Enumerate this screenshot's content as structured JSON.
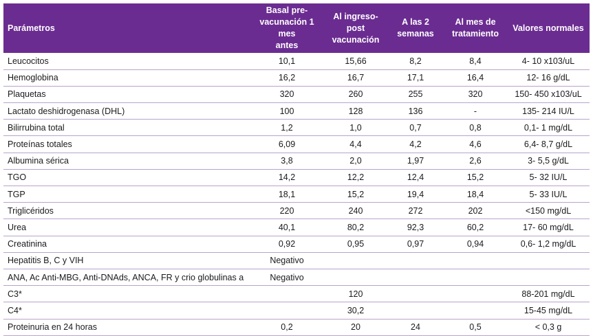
{
  "header": {
    "col0": "Parámetros",
    "col1": "Basal pre-vacunación 1 mes antes",
    "col2": "Al ingreso-post vacunación",
    "col3": "A las 2 semanas",
    "col4": "Al mes de tratamiento",
    "col5": "Valores normales"
  },
  "header_lines": {
    "col1": [
      "Basal pre-",
      "vacunación 1 mes",
      "antes"
    ],
    "col2": [
      "Al ingreso-",
      "post",
      "vacunación"
    ],
    "col3": [
      "A las 2",
      "semanas"
    ],
    "col4": [
      "Al mes de",
      "tratamiento"
    ]
  },
  "rows": [
    [
      "Leucocitos",
      "10,1",
      "15,66",
      "8,2",
      "8,4",
      "4- 10 x103/uL"
    ],
    [
      "Hemoglobina",
      "16,2",
      "16,7",
      "17,1",
      "16,4",
      "12- 16 g/dL"
    ],
    [
      "Plaquetas",
      "320",
      "260",
      "255",
      "320",
      "150- 450 x103/uL"
    ],
    [
      "Lactato deshidrogenasa (DHL)",
      "100",
      "128",
      "136",
      "-",
      "135- 214 IU/L"
    ],
    [
      "Bilirrubina total",
      "1,2",
      "1,0",
      "0,7",
      "0,8",
      "0,1- 1 mg/dL"
    ],
    [
      "Proteínas totales",
      "6,09",
      "4,4",
      "4,2",
      "4,6",
      "6,4- 8,7 g/dL"
    ],
    [
      "Albumina sérica",
      "3,8",
      "2,0",
      "1,97",
      "2,6",
      "3- 5,5 g/dL"
    ],
    [
      "TGO",
      "14,2",
      "12,2",
      "12,4",
      "15,2",
      "5- 32 IU/L"
    ],
    [
      "TGP",
      "18,1",
      "15,2",
      "19,4",
      "18,4",
      "5- 33 IU/L"
    ],
    [
      "Triglicéridos",
      "220",
      "240",
      "272",
      "202",
      "<150 mg/dL"
    ],
    [
      "Urea",
      "40,1",
      "80,2",
      "92,3",
      "60,2",
      "17- 60 mg/dL"
    ],
    [
      "Creatinina",
      "0,92",
      "0,95",
      "0,97",
      "0,94",
      "0,6- 1,2 mg/dL"
    ],
    [
      "Hepatitis B, C y VIH",
      "Negativo",
      "",
      "",
      "",
      ""
    ],
    [
      "ANA, Ac Anti-MBG, Anti-DNAds, ANCA, FR y crio globulinas a",
      "Negativo",
      "",
      "",
      "",
      ""
    ],
    [
      "C3*",
      "",
      "120",
      "",
      "",
      "88-201 mg/dL"
    ],
    [
      "C4*",
      "",
      "30,2",
      "",
      "",
      "15-45 mg/dL"
    ],
    [
      "Proteinuria en 24 horas",
      "0,2",
      "20",
      "24",
      "0,5",
      "< 0,3 g"
    ]
  ]
}
